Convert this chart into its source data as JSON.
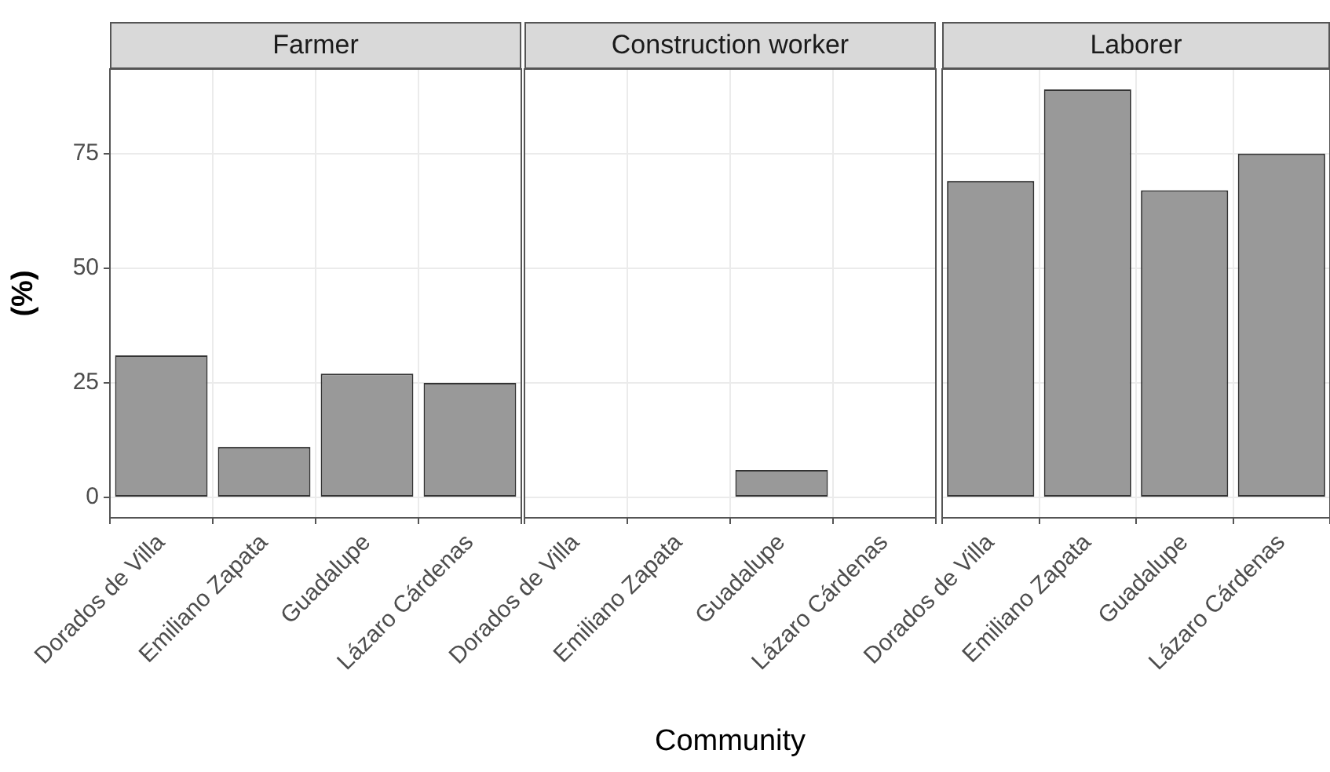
{
  "chart_data": [
    {
      "type": "bar",
      "title": "Farmer",
      "ylabel": "(%)",
      "categories": [
        "Dorados de Villa",
        "Emiliano Zapata",
        "Guadalupe",
        "Lázaro Cárdenas"
      ],
      "values": [
        31,
        11,
        27,
        25
      ],
      "color": "#999999",
      "ylim": [
        -4.45,
        93.45
      ],
      "yticks": [
        0,
        25,
        50,
        75
      ],
      "grid": true
    },
    {
      "type": "bar",
      "title": "Construction worker",
      "xlabel": "Community",
      "categories": [
        "Dorados de Villa",
        "Emiliano Zapata",
        "Guadalupe",
        "Lázaro Cárdenas"
      ],
      "values": [
        0,
        0,
        6,
        0
      ],
      "color": "#999999",
      "ylim": [
        -4.45,
        93.45
      ],
      "yticks": [
        0,
        25,
        50,
        75
      ],
      "grid": true,
      "tick_labels": "x"
    },
    {
      "type": "bar",
      "title": "Laborer",
      "categories": [
        "Dorados de Villa",
        "Emiliano Zapata",
        "Guadalupe",
        "Lázaro Cárdenas"
      ],
      "values": [
        69,
        89,
        67,
        75
      ],
      "color": "#999999",
      "ylim": [
        -4.45,
        93.45
      ],
      "yticks": [
        0,
        25,
        50,
        75
      ],
      "grid": true,
      "tick_labels": "x"
    }
  ]
}
